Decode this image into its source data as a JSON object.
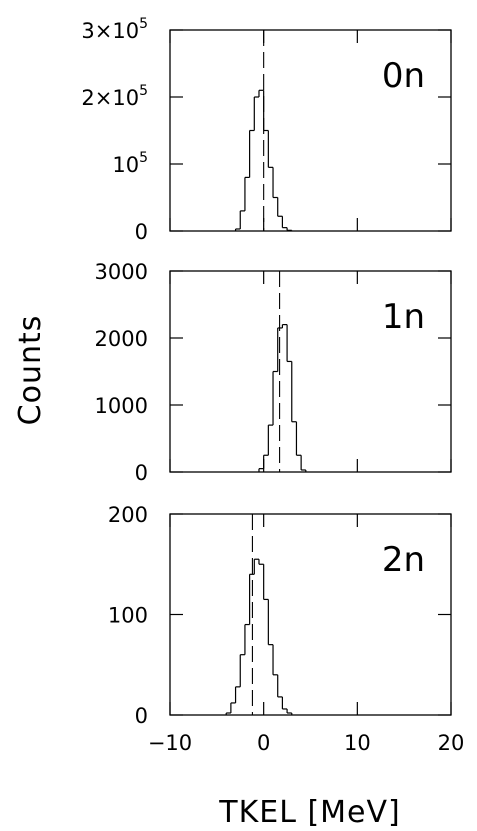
{
  "chart_data": [
    {
      "type": "histogram",
      "panel_label": "0n",
      "ylabel": "Counts",
      "xlabel": "TKEL [MeV]",
      "xlim": [
        -10,
        20
      ],
      "ylim": [
        0,
        300000
      ],
      "yticks": [
        {
          "value": 0,
          "label": "0"
        },
        {
          "value": 100000,
          "label": "10",
          "exponent": "5"
        },
        {
          "value": 200000,
          "label": "2×10",
          "exponent": "5"
        },
        {
          "value": 300000,
          "label": "3×10",
          "exponent": "5"
        }
      ],
      "mean_line_x": 0,
      "bin_edges": [
        -3,
        -2.5,
        -2,
        -1.5,
        -1,
        -0.5,
        0,
        0.5,
        1,
        1.5,
        2,
        2.5,
        3
      ],
      "counts": [
        3000,
        30000,
        80000,
        150000,
        200000,
        210000,
        150000,
        95000,
        50000,
        22000,
        5000,
        1000
      ]
    },
    {
      "type": "histogram",
      "panel_label": "1n",
      "xlim": [
        -10,
        20
      ],
      "ylim": [
        0,
        3000
      ],
      "yticks": [
        {
          "value": 0,
          "label": "0"
        },
        {
          "value": 1000,
          "label": "1000"
        },
        {
          "value": 2000,
          "label": "2000"
        },
        {
          "value": 3000,
          "label": "3000"
        }
      ],
      "mean_line_x": 1.7,
      "bin_edges": [
        -0.5,
        0,
        0.5,
        1,
        1.5,
        2,
        2.5,
        3,
        3.5,
        4,
        4.5
      ],
      "counts": [
        50,
        250,
        700,
        1500,
        2150,
        2200,
        1650,
        750,
        250,
        30
      ]
    },
    {
      "type": "histogram",
      "panel_label": "2n",
      "xlim": [
        -10,
        20
      ],
      "ylim": [
        0,
        200
      ],
      "yticks": [
        {
          "value": 0,
          "label": "0"
        },
        {
          "value": 100,
          "label": "100"
        },
        {
          "value": 200,
          "label": "200"
        }
      ],
      "xticks": [
        {
          "value": -10,
          "label": "−10"
        },
        {
          "value": 0,
          "label": "0"
        },
        {
          "value": 10,
          "label": "10"
        },
        {
          "value": 20,
          "label": "20"
        }
      ],
      "mean_line_x": -1.2,
      "bin_edges": [
        -4,
        -3.5,
        -3,
        -2.5,
        -2,
        -1.5,
        -1,
        -0.5,
        0,
        0.5,
        1,
        1.5,
        2,
        2.5,
        3
      ],
      "counts": [
        2,
        12,
        28,
        60,
        90,
        140,
        155,
        150,
        115,
        70,
        40,
        18,
        6,
        2
      ]
    }
  ]
}
